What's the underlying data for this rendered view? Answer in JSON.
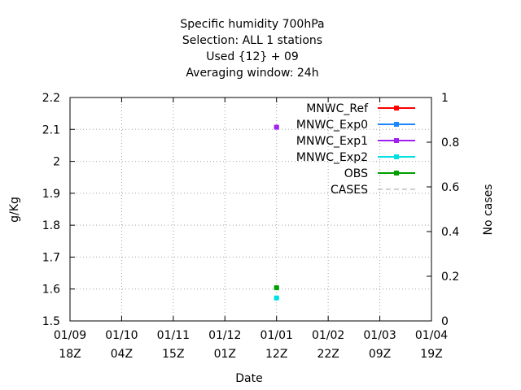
{
  "chart_data": {
    "type": "scatter",
    "title_lines": [
      "Specific humidity 700hPa",
      "Selection: ALL      1 stations",
      "Used {12} + 09",
      "Averaging window: 24h"
    ],
    "xlabel": "Date",
    "ylabel": "g/Kg",
    "y2label": "No cases",
    "ylim": [
      1.5,
      2.2
    ],
    "y2lim": [
      0,
      1
    ],
    "yticks": [
      "1.5",
      "1.6",
      "1.7",
      "1.8",
      "1.9",
      "2",
      "2.1",
      "2.2"
    ],
    "y2ticks": [
      "0",
      "0.2",
      "0.4",
      "0.6",
      "0.8",
      "1"
    ],
    "xticks": [
      {
        "date": "01/09",
        "time": "18Z"
      },
      {
        "date": "01/10",
        "time": "04Z"
      },
      {
        "date": "01/11",
        "time": "15Z"
      },
      {
        "date": "01/12",
        "time": "01Z"
      },
      {
        "date": "01/01",
        "time": "12Z"
      },
      {
        "date": "01/02",
        "time": "22Z"
      },
      {
        "date": "01/03",
        "time": "09Z"
      },
      {
        "date": "01/04",
        "time": "19Z"
      }
    ],
    "grid": true,
    "legend_position": "top-right",
    "series": [
      {
        "name": "MNWC_Ref",
        "color": "#ff0000",
        "style": "line-point",
        "x": [],
        "y": []
      },
      {
        "name": "MNWC_Exp0",
        "color": "#1a86ff",
        "style": "line-point",
        "x": [],
        "y": []
      },
      {
        "name": "MNWC_Exp1",
        "color": "#a020f0",
        "style": "line-point",
        "x": [
          "01/12 12Z"
        ],
        "y": [
          2.107
        ]
      },
      {
        "name": "MNWC_Exp2",
        "color": "#00e0e0",
        "style": "line-point",
        "x": [
          "01/12 12Z"
        ],
        "y": [
          1.572
        ]
      },
      {
        "name": "OBS",
        "color": "#00a000",
        "style": "line-point",
        "x": [
          "01/12 12Z"
        ],
        "y": [
          1.604
        ]
      },
      {
        "name": "CASES",
        "color": "#a0a0a0",
        "style": "dashed",
        "x": [],
        "y": []
      }
    ]
  }
}
